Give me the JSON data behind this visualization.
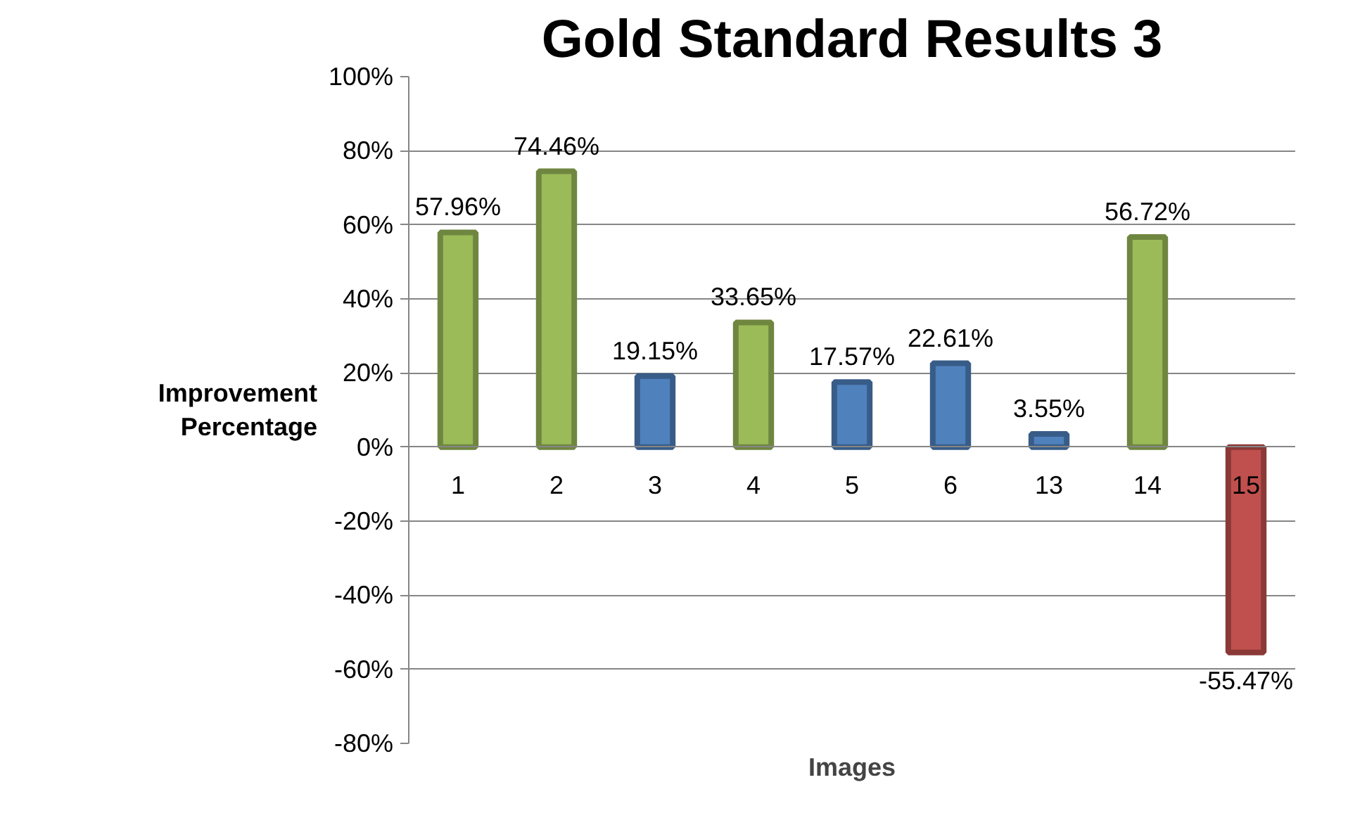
{
  "chart_data": {
    "type": "bar",
    "title": "Gold Standard Results 3",
    "xlabel": "Images",
    "ylabel": "Improvement Percentage",
    "categories": [
      "1",
      "2",
      "3",
      "4",
      "5",
      "6",
      "13",
      "14",
      "15"
    ],
    "values": [
      57.96,
      74.46,
      19.15,
      33.65,
      17.57,
      22.61,
      3.55,
      56.72,
      -55.47
    ],
    "colors": [
      "#9bbb59",
      "#9bbb59",
      "#4f81bd",
      "#9bbb59",
      "#4f81bd",
      "#4f81bd",
      "#4f81bd",
      "#9bbb59",
      "#c0504d"
    ],
    "value_labels": [
      "57.96%",
      "74.46%",
      "19.15%",
      "33.65%",
      "17.57%",
      "22.61%",
      "3.55%",
      "56.72%",
      "-55.47%"
    ],
    "ylim": [
      -80,
      100
    ],
    "yticks": [
      {
        "value": -80,
        "label": "-80%"
      },
      {
        "value": -60,
        "label": "-60%"
      },
      {
        "value": -40,
        "label": "-40%"
      },
      {
        "value": -20,
        "label": "-20%"
      },
      {
        "value": 0,
        "label": "0%"
      },
      {
        "value": 20,
        "label": "20%"
      },
      {
        "value": 40,
        "label": "40%"
      },
      {
        "value": 60,
        "label": "60%"
      },
      {
        "value": 80,
        "label": "80%"
      },
      {
        "value": 100,
        "label": "100%"
      }
    ],
    "grid": "y"
  }
}
